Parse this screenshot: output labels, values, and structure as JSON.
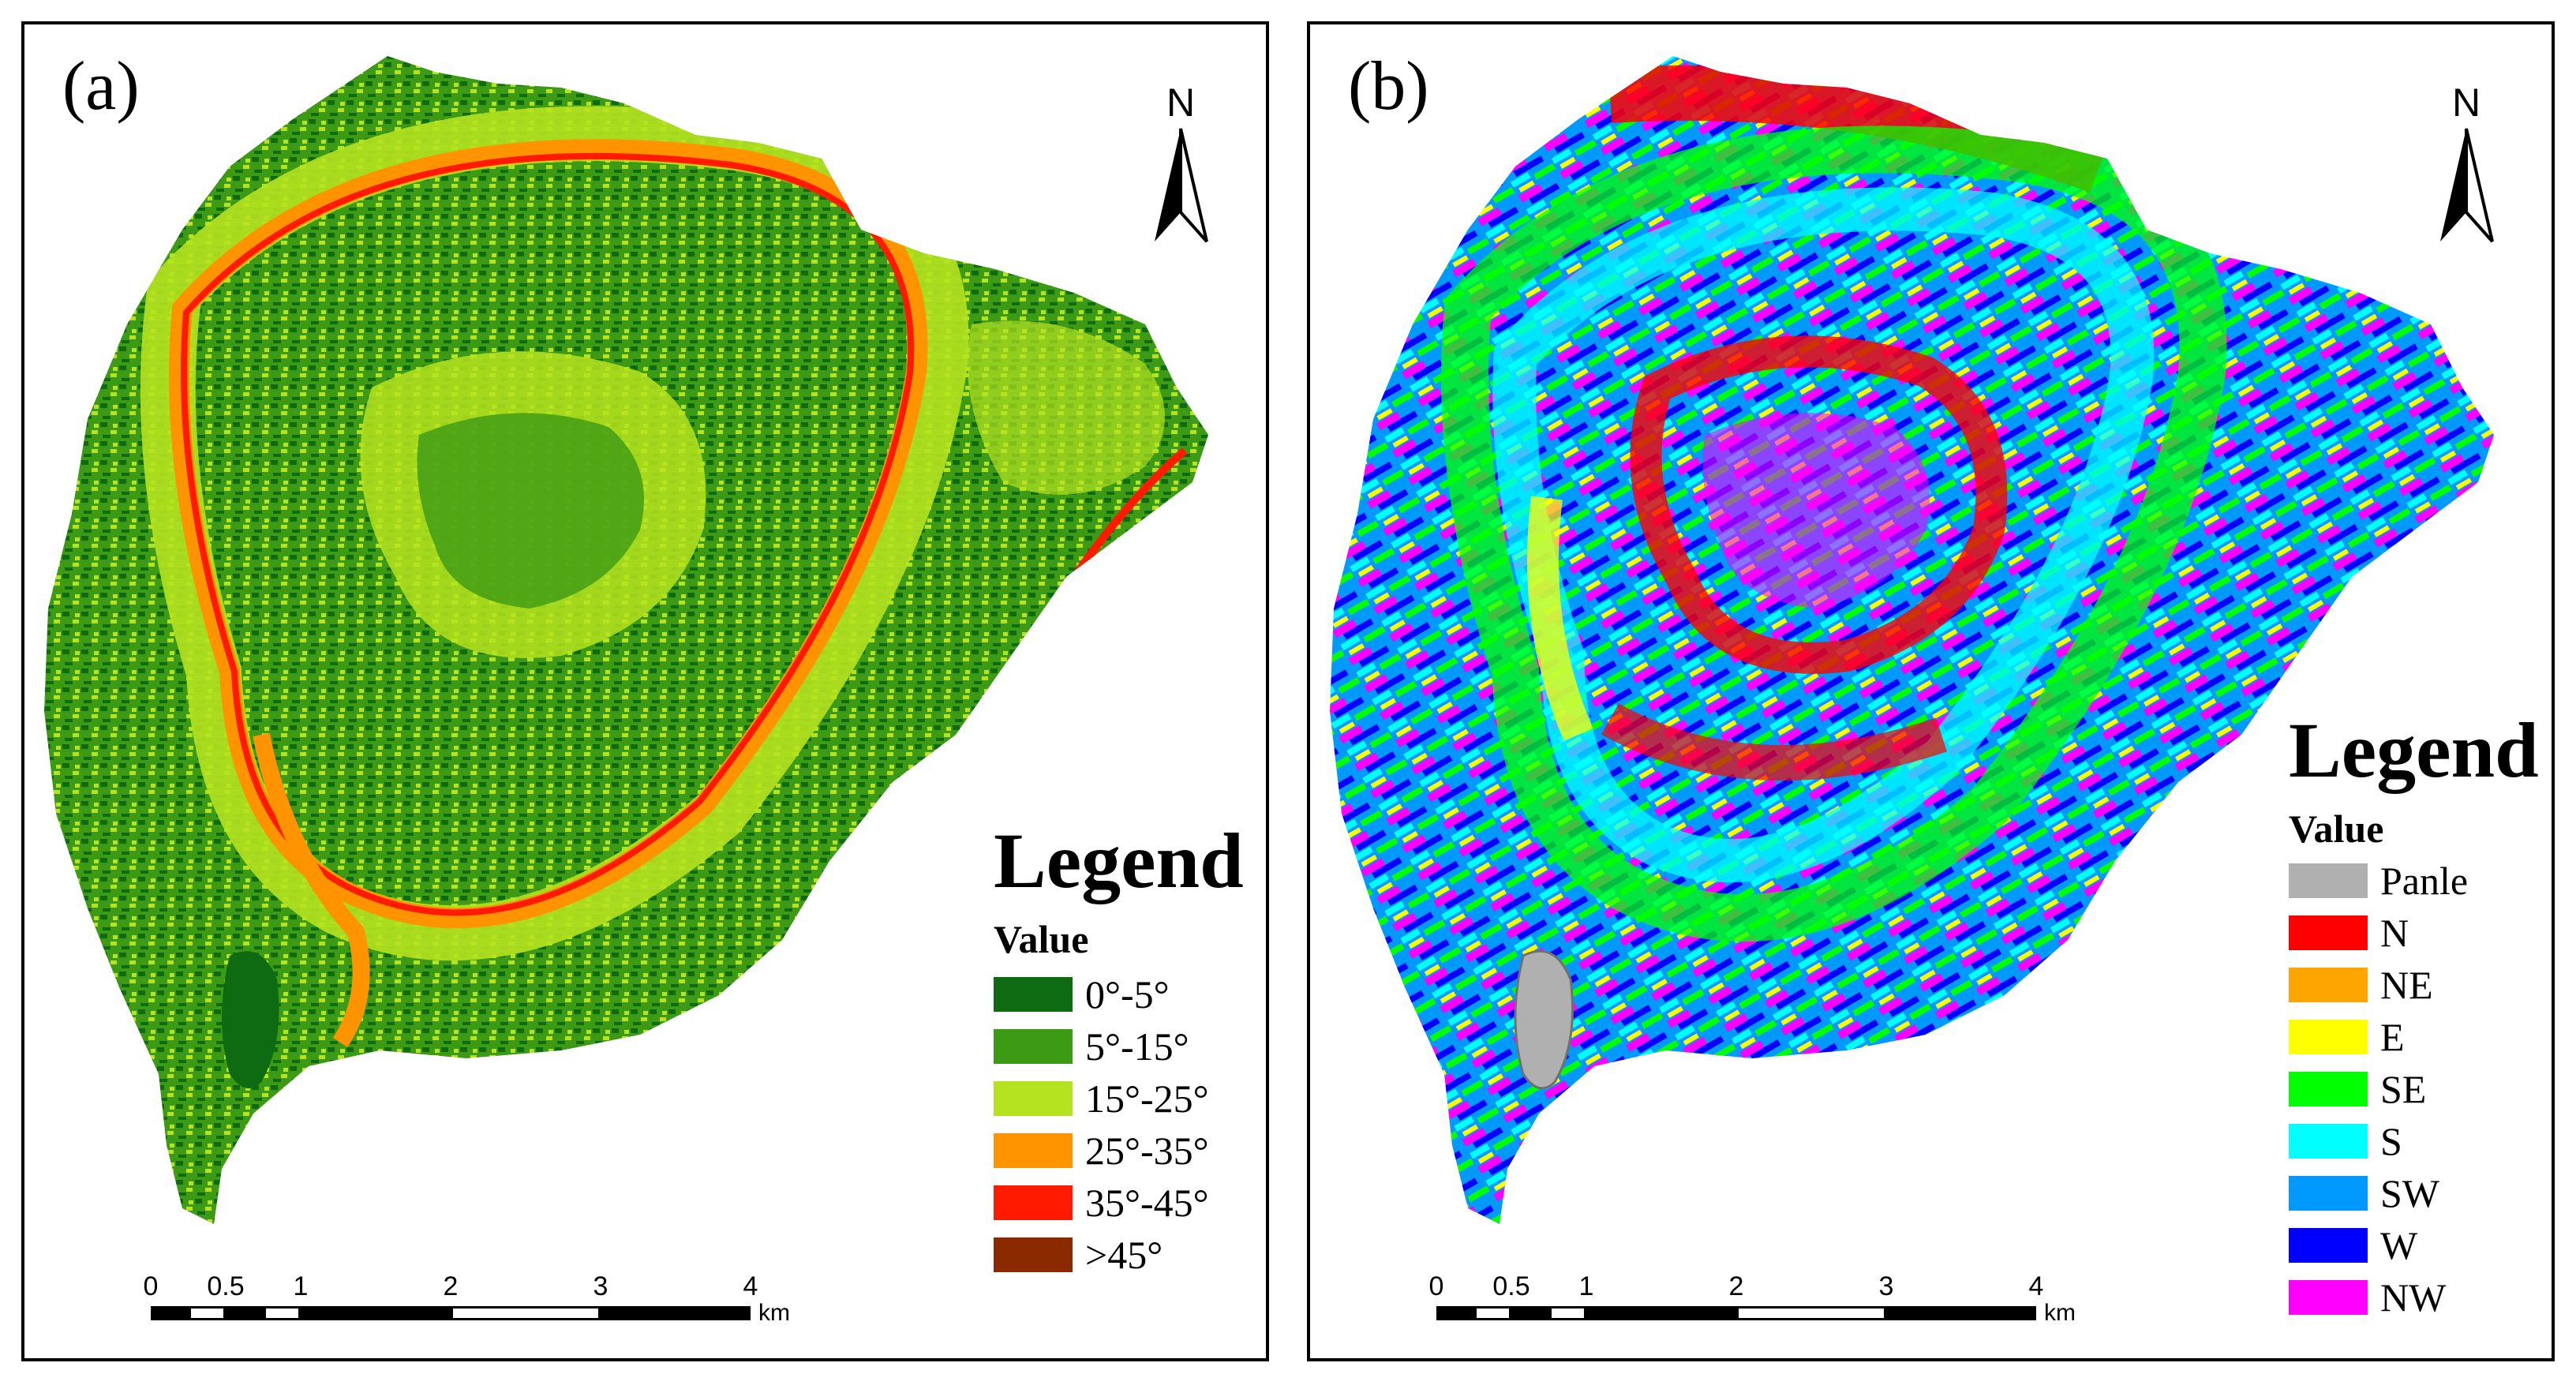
{
  "panel_a": {
    "label": "(a)",
    "north_label": "N",
    "legend": {
      "title": "Legend",
      "subtitle": "Value",
      "items": [
        {
          "label": "0°-5°",
          "color": "#0e6b12"
        },
        {
          "label": "5°-15°",
          "color": "#3c9a15"
        },
        {
          "label": "15°-25°",
          "color": "#b5e31f"
        },
        {
          "label": "25°-35°",
          "color": "#ff9300"
        },
        {
          "label": "35°-45°",
          "color": "#ff1a00"
        },
        {
          "label": ">45°",
          "color": "#8b2a00"
        }
      ]
    },
    "scale": {
      "ticks": [
        "0",
        "0.5",
        "1",
        "2",
        "3",
        "4"
      ],
      "unit": "km"
    }
  },
  "panel_b": {
    "label": "(b)",
    "north_label": "N",
    "legend": {
      "title": "Legend",
      "subtitle": "Value",
      "items": [
        {
          "label": "Panle",
          "color": "#b0b0b0"
        },
        {
          "label": "N",
          "color": "#ff0000"
        },
        {
          "label": "NE",
          "color": "#ffa500"
        },
        {
          "label": "E",
          "color": "#ffff00"
        },
        {
          "label": "SE",
          "color": "#00ff00"
        },
        {
          "label": "S",
          "color": "#00ffff"
        },
        {
          "label": "SW",
          "color": "#0099ff"
        },
        {
          "label": "W",
          "color": "#0000ff"
        },
        {
          "label": "NW",
          "color": "#ff00ff"
        }
      ]
    },
    "scale": {
      "ticks": [
        "0",
        "0.5",
        "1",
        "2",
        "3",
        "4"
      ],
      "unit": "km"
    }
  }
}
